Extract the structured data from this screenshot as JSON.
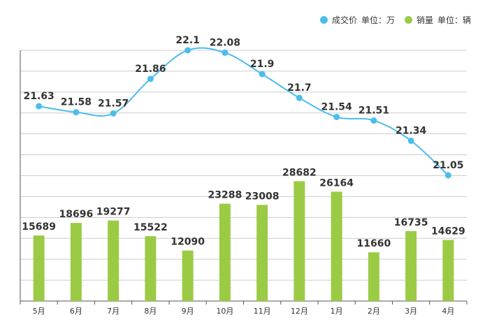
{
  "legend": {
    "price": {
      "name": "成交价",
      "unit": "单位：万"
    },
    "sales": {
      "name": "销量",
      "unit": "单位：辆"
    }
  },
  "colors": {
    "line": "#4bbdec",
    "bar": "#9bcb44",
    "grid": "#cccccc",
    "axis": "#555555"
  },
  "chart_data": {
    "type": "bar+line",
    "categories": [
      "5月",
      "6月",
      "7月",
      "8月",
      "9月",
      "10月",
      "11月",
      "12月",
      "1月",
      "2月",
      "3月",
      "4月"
    ],
    "series": [
      {
        "name": "成交价",
        "unit": "万",
        "type": "line",
        "values": [
          21.63,
          21.58,
          21.57,
          21.86,
          22.1,
          22.08,
          21.9,
          21.7,
          21.54,
          21.51,
          21.34,
          21.05
        ]
      },
      {
        "name": "销量",
        "unit": "辆",
        "type": "bar",
        "values": [
          15689,
          18696,
          19277,
          15522,
          12090,
          23288,
          23008,
          28682,
          26164,
          11660,
          16735,
          14629
        ]
      }
    ],
    "title": "",
    "xlabel": "",
    "ylabel": ""
  }
}
